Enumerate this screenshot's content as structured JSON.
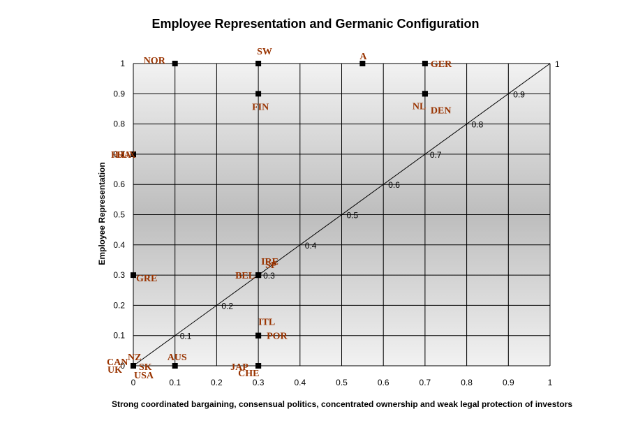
{
  "chart_data": {
    "type": "scatter",
    "title": "Employee Representation and Germanic Configuration",
    "xlabel": "Strong coordinated bargaining, consensual politics, concentrated ownership and weak legal protection of investors",
    "ylabel": "Employee Representation",
    "xlim": [
      0,
      1
    ],
    "ylim": [
      0,
      1
    ],
    "x_ticks": [
      "0",
      "0.1",
      "0.2",
      "0.3",
      "0.4",
      "0.5",
      "0.6",
      "0.7",
      "0.8",
      "0.9",
      "1"
    ],
    "y_ticks": [
      "0",
      "0.1",
      "0.2",
      "0.3",
      "0.4",
      "0.5",
      "0.6",
      "0.7",
      "0.8",
      "0.9",
      "1"
    ],
    "grid": true,
    "background": "gradient-gray",
    "marker_color": "#000000",
    "label_color": "#993300",
    "diagonal_line": {
      "from": [
        0,
        0
      ],
      "to": [
        1,
        1
      ],
      "labels": [
        "0.1",
        "0.2",
        "0.3",
        "0.4",
        "0.5",
        "0.6",
        "0.7",
        "0.8",
        "0.9",
        "1"
      ]
    },
    "points": [
      {
        "label": "NOR",
        "x": 0.1,
        "y": 1.0
      },
      {
        "label": "SW",
        "x": 0.3,
        "y": 1.0
      },
      {
        "label": "A",
        "x": 0.55,
        "y": 1.0
      },
      {
        "label": "GER",
        "x": 0.7,
        "y": 1.0
      },
      {
        "label": "NL",
        "x": 0.7,
        "y": 0.9
      },
      {
        "label": "DEN",
        "x": 0.7,
        "y": 0.9
      },
      {
        "label": "FIN",
        "x": 0.3,
        "y": 0.9
      },
      {
        "label": "FRA",
        "x": 0.0,
        "y": 0.7
      },
      {
        "label": "LUX",
        "x": 0.0,
        "y": 0.7
      },
      {
        "label": "GRE",
        "x": 0.0,
        "y": 0.3
      },
      {
        "label": "IRE",
        "x": 0.3,
        "y": 0.3
      },
      {
        "label": "SP",
        "x": 0.3,
        "y": 0.3
      },
      {
        "label": "BEL",
        "x": 0.3,
        "y": 0.3
      },
      {
        "label": "ITL",
        "x": 0.3,
        "y": 0.1
      },
      {
        "label": "POR",
        "x": 0.3,
        "y": 0.1
      },
      {
        "label": "NZ",
        "x": 0.0,
        "y": 0.0
      },
      {
        "label": "CAN",
        "x": 0.0,
        "y": 0.0
      },
      {
        "label": "UK",
        "x": 0.0,
        "y": 0.0
      },
      {
        "label": "SK",
        "x": 0.0,
        "y": 0.0
      },
      {
        "label": "USA",
        "x": 0.0,
        "y": 0.0
      },
      {
        "label": "AUS",
        "x": 0.1,
        "y": 0.0
      },
      {
        "label": "JAP",
        "x": 0.3,
        "y": 0.0
      },
      {
        "label": "CHE",
        "x": 0.3,
        "y": 0.0
      }
    ]
  }
}
